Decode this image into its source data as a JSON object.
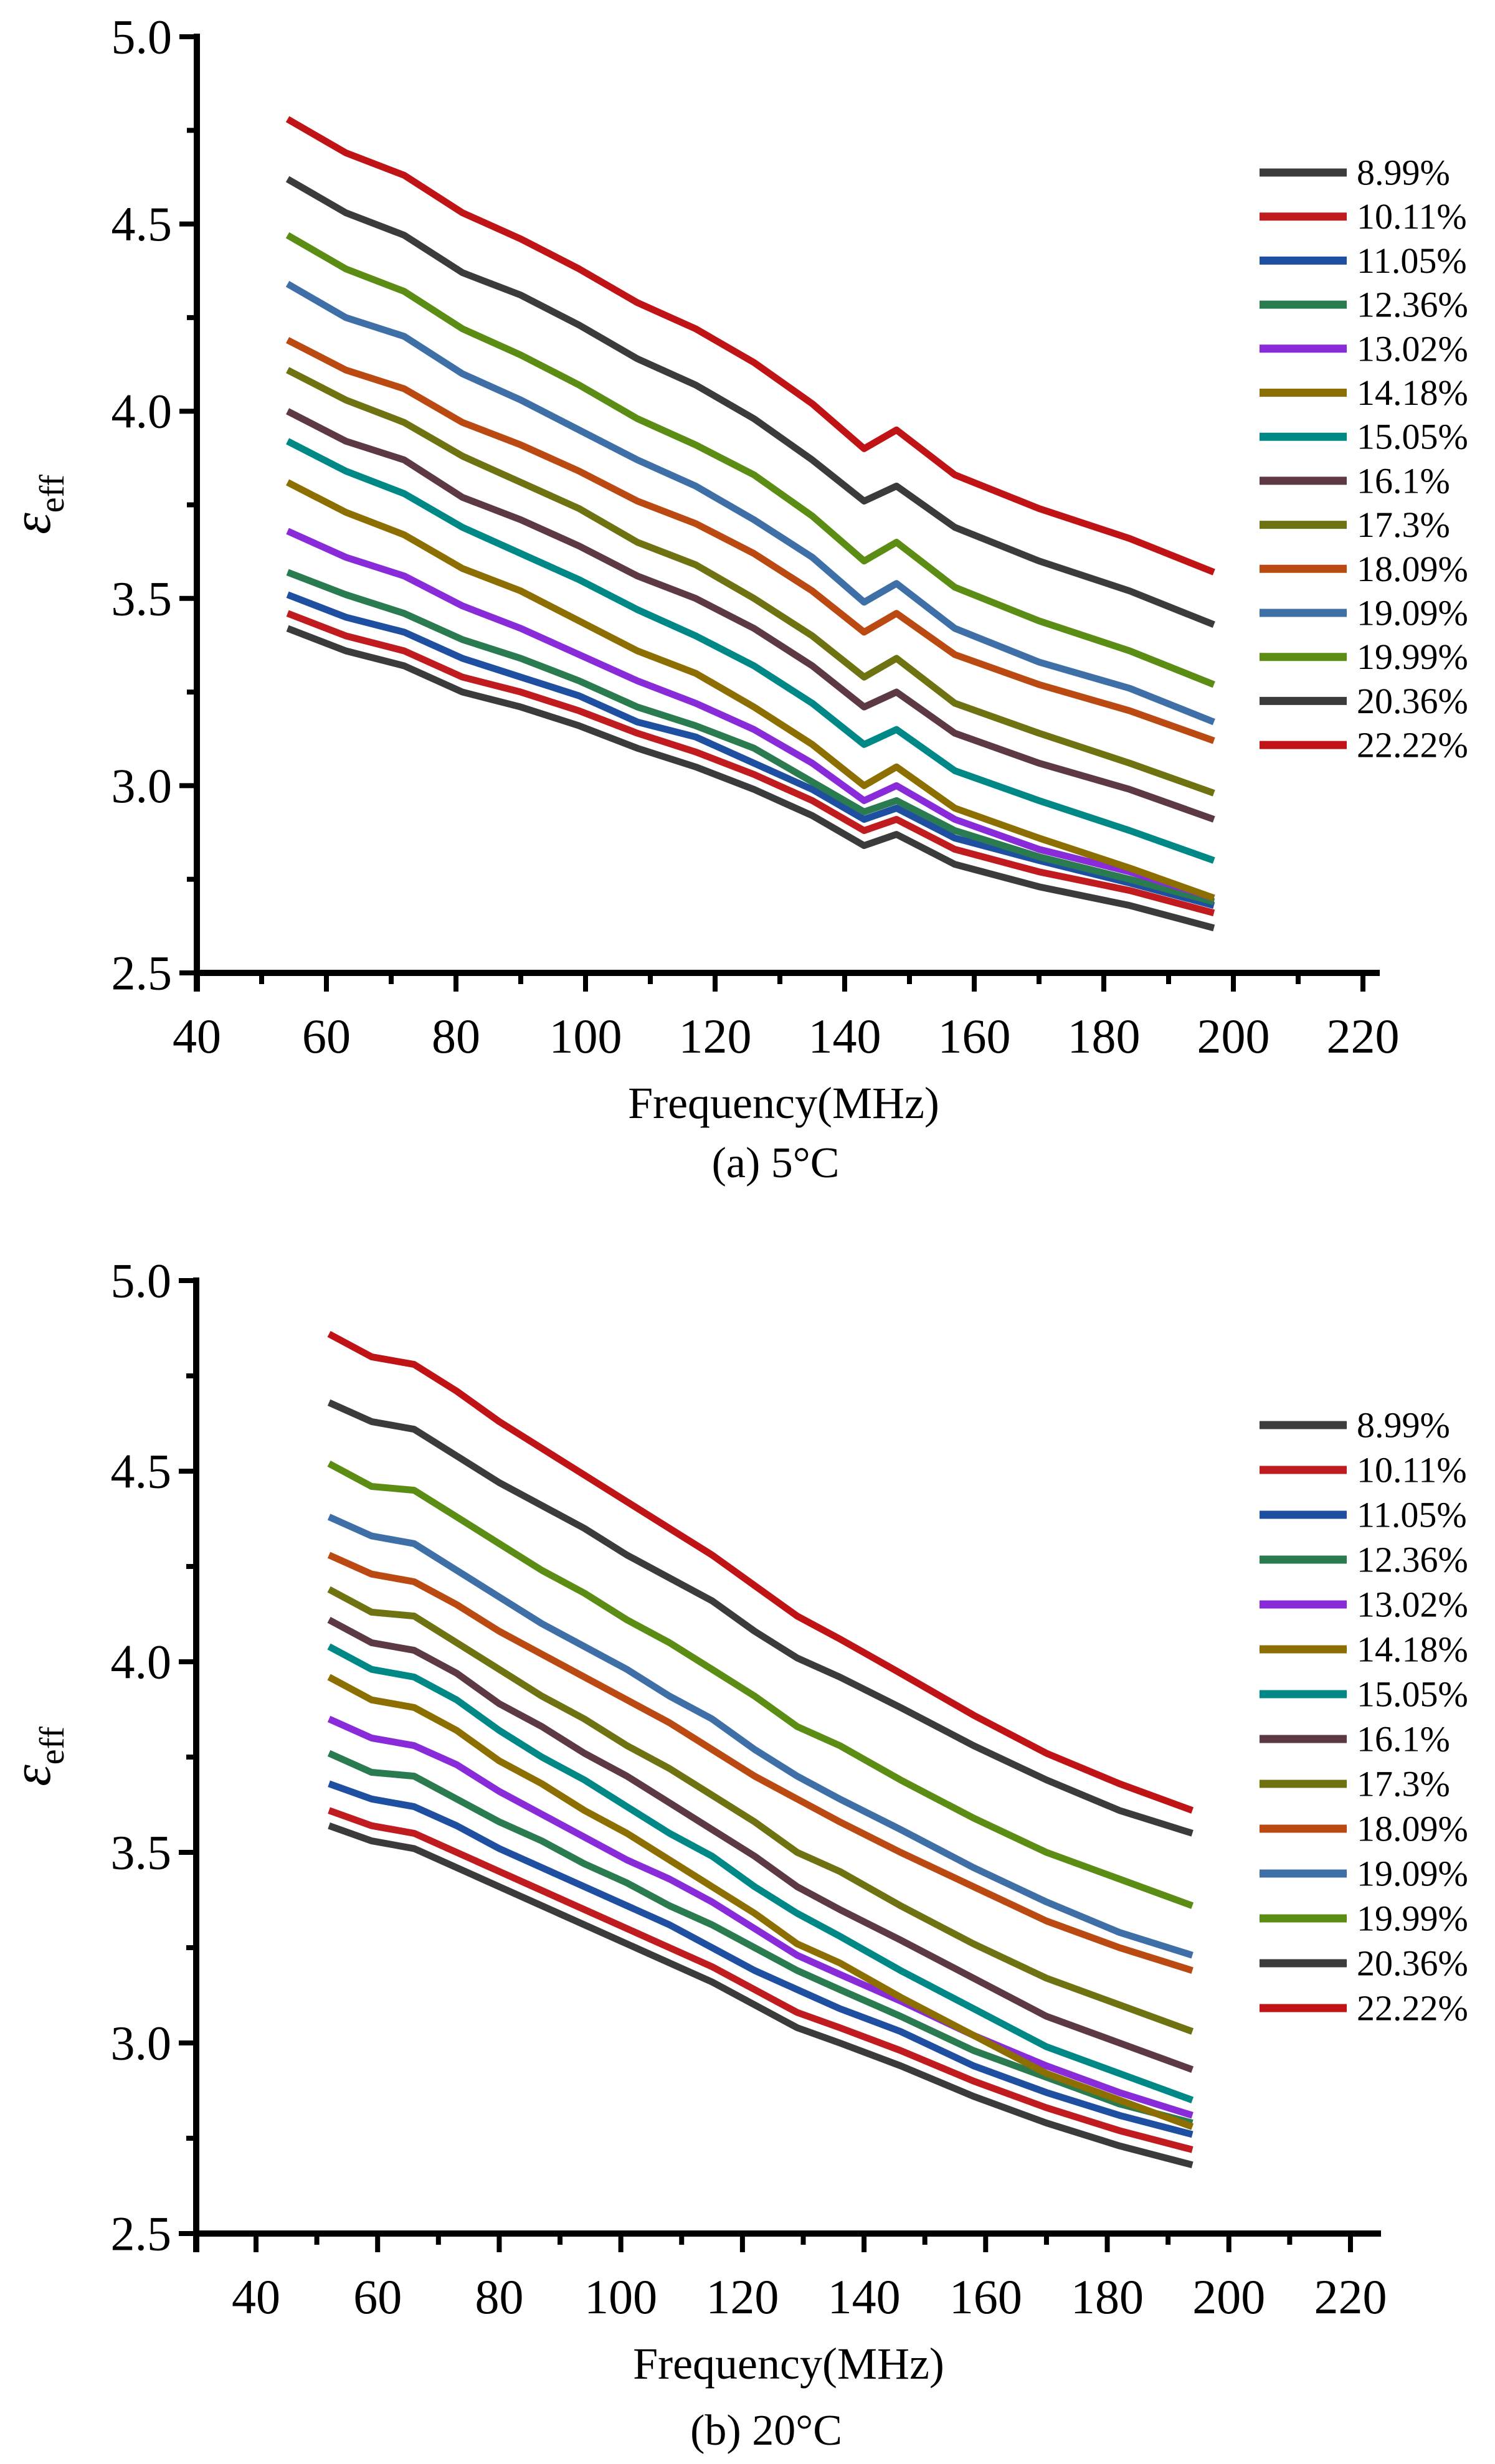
{
  "page": {
    "background": "#ffffff"
  },
  "chart_data": [
    {
      "type": "line",
      "caption": "(a) 5°C",
      "xlabel": "Frequency(MHz)",
      "ylabel_symbol": "ε",
      "ylabel_subscript": "eff",
      "xlim": [
        40,
        222
      ],
      "ylim": [
        2.5,
        5.0
      ],
      "grid": "off",
      "legend_position": "right",
      "x_tick_labels": [
        "40",
        "60",
        "80",
        "100",
        "120",
        "140",
        "160",
        "180",
        "200",
        "220"
      ],
      "x_tick_values": [
        40,
        60,
        80,
        100,
        120,
        140,
        160,
        180,
        200,
        220
      ],
      "x_minor_ticks": [
        50,
        70,
        90,
        110,
        130,
        150,
        170,
        190,
        210
      ],
      "y_tick_labels": [
        "5.0",
        "4.5",
        "4.0",
        "3.5",
        "3.0",
        "2.5"
      ],
      "y_tick_values": [
        5.0,
        4.5,
        4.0,
        3.5,
        3.0,
        2.5
      ],
      "y_minor_ticks": [
        4.75,
        4.25,
        3.75,
        3.25,
        2.75
      ],
      "x": [
        54,
        63,
        72,
        81,
        90,
        99,
        108,
        117,
        126,
        135,
        143,
        148,
        157,
        170,
        184,
        197
      ],
      "series": [
        {
          "label": "8.99%",
          "color": "#3b3b3b",
          "y": [
            3.42,
            3.36,
            3.32,
            3.25,
            3.21,
            3.16,
            3.1,
            3.05,
            2.99,
            2.92,
            2.84,
            2.87,
            2.79,
            2.73,
            2.68,
            2.62
          ]
        },
        {
          "label": "10.11%",
          "color": "#c01b1e",
          "y": [
            3.46,
            3.4,
            3.36,
            3.29,
            3.25,
            3.2,
            3.14,
            3.09,
            3.03,
            2.96,
            2.88,
            2.91,
            2.83,
            2.77,
            2.72,
            2.66
          ]
        },
        {
          "label": "11.05%",
          "color": "#1e4fa0",
          "y": [
            3.51,
            3.45,
            3.41,
            3.34,
            3.29,
            3.24,
            3.17,
            3.13,
            3.06,
            2.99,
            2.91,
            2.94,
            2.86,
            2.8,
            2.74,
            2.68
          ]
        },
        {
          "label": "12.36%",
          "color": "#2a7b50",
          "y": [
            3.57,
            3.51,
            3.46,
            3.39,
            3.34,
            3.28,
            3.21,
            3.16,
            3.1,
            3.01,
            2.93,
            2.96,
            2.88,
            2.81,
            2.75,
            2.69
          ]
        },
        {
          "label": "13.02%",
          "color": "#8a2bd9",
          "y": [
            3.68,
            3.61,
            3.56,
            3.48,
            3.42,
            3.35,
            3.28,
            3.22,
            3.15,
            3.06,
            2.96,
            3.0,
            2.91,
            2.83,
            2.77,
            2.7
          ]
        },
        {
          "label": "14.18%",
          "color": "#8d6e00",
          "y": [
            3.81,
            3.73,
            3.67,
            3.58,
            3.52,
            3.44,
            3.36,
            3.3,
            3.21,
            3.11,
            3.0,
            3.05,
            2.94,
            2.86,
            2.78,
            2.7
          ]
        },
        {
          "label": "15.05%",
          "color": "#008887",
          "y": [
            3.92,
            3.84,
            3.78,
            3.69,
            3.62,
            3.55,
            3.47,
            3.4,
            3.32,
            3.22,
            3.11,
            3.15,
            3.04,
            2.96,
            2.88,
            2.8
          ]
        },
        {
          "label": "16.1%",
          "color": "#5d3a43",
          "y": [
            4.0,
            3.92,
            3.87,
            3.77,
            3.71,
            3.64,
            3.56,
            3.5,
            3.42,
            3.32,
            3.21,
            3.25,
            3.14,
            3.06,
            2.99,
            2.91
          ]
        },
        {
          "label": "17.3%",
          "color": "#6e7211",
          "y": [
            4.11,
            4.03,
            3.97,
            3.88,
            3.81,
            3.74,
            3.65,
            3.59,
            3.5,
            3.4,
            3.29,
            3.34,
            3.22,
            3.14,
            3.06,
            2.98
          ]
        },
        {
          "label": "18.09%",
          "color": "#bb4a12",
          "y": [
            4.19,
            4.11,
            4.06,
            3.97,
            3.91,
            3.84,
            3.76,
            3.7,
            3.62,
            3.52,
            3.41,
            3.46,
            3.35,
            3.27,
            3.2,
            3.12
          ]
        },
        {
          "label": "19.09%",
          "color": "#3e70a7",
          "y": [
            4.34,
            4.25,
            4.2,
            4.1,
            4.03,
            3.95,
            3.87,
            3.8,
            3.71,
            3.61,
            3.49,
            3.54,
            3.42,
            3.33,
            3.26,
            3.17
          ]
        },
        {
          "label": "19.99%",
          "color": "#5b8c14",
          "y": [
            4.47,
            4.38,
            4.32,
            4.22,
            4.15,
            4.07,
            3.98,
            3.91,
            3.83,
            3.72,
            3.6,
            3.65,
            3.53,
            3.44,
            3.36,
            3.27
          ]
        },
        {
          "label": "20.36%",
          "color": "#3b3b3b",
          "y": [
            4.62,
            4.53,
            4.47,
            4.37,
            4.31,
            4.23,
            4.14,
            4.07,
            3.98,
            3.87,
            3.76,
            3.8,
            3.69,
            3.6,
            3.52,
            3.43
          ]
        },
        {
          "label": "22.22%",
          "color": "#c01316",
          "y": [
            4.78,
            4.69,
            4.63,
            4.53,
            4.46,
            4.38,
            4.29,
            4.22,
            4.13,
            4.02,
            3.9,
            3.95,
            3.83,
            3.74,
            3.66,
            3.57
          ]
        }
      ]
    },
    {
      "type": "line",
      "caption": "(b) 20°C",
      "xlabel": "Frequency(MHz)",
      "ylabel_symbol": "ε",
      "ylabel_subscript": "eff",
      "xlim": [
        30,
        225
      ],
      "ylim": [
        2.5,
        5.0
      ],
      "grid": "off",
      "legend_position": "right",
      "x_tick_labels": [
        "40",
        "60",
        "80",
        "100",
        "120",
        "140",
        "160",
        "180",
        "200",
        "220"
      ],
      "x_tick_values": [
        40,
        60,
        80,
        100,
        120,
        140,
        160,
        180,
        200,
        220
      ],
      "x_minor_ticks": [
        50,
        70,
        90,
        110,
        130,
        150,
        170,
        190,
        210
      ],
      "y_tick_labels": [
        "5.0",
        "4.5",
        "4.0",
        "3.5",
        "3.0",
        "2.5"
      ],
      "y_tick_values": [
        5.0,
        4.5,
        4.0,
        3.5,
        3.0,
        2.5
      ],
      "y_minor_ticks": [
        4.75,
        4.25,
        3.75,
        3.25,
        2.75
      ],
      "x": [
        52,
        59,
        66,
        73,
        80,
        87,
        94,
        101,
        108,
        115,
        122,
        129,
        136,
        146,
        158,
        170,
        182,
        194
      ],
      "series": [
        {
          "label": "8.99%",
          "color": "#3b3b3b",
          "y": [
            3.57,
            3.53,
            3.51,
            3.46,
            3.41,
            3.36,
            3.31,
            3.26,
            3.21,
            3.16,
            3.1,
            3.04,
            3.0,
            2.94,
            2.86,
            2.79,
            2.73,
            2.68
          ]
        },
        {
          "label": "10.11%",
          "color": "#c01b1e",
          "y": [
            3.61,
            3.57,
            3.55,
            3.5,
            3.45,
            3.4,
            3.35,
            3.3,
            3.25,
            3.2,
            3.14,
            3.08,
            3.04,
            2.98,
            2.9,
            2.83,
            2.77,
            2.72
          ]
        },
        {
          "label": "11.05%",
          "color": "#1e4fa0",
          "y": [
            3.68,
            3.64,
            3.62,
            3.57,
            3.51,
            3.46,
            3.41,
            3.36,
            3.31,
            3.25,
            3.19,
            3.14,
            3.09,
            3.03,
            2.94,
            2.87,
            2.81,
            2.76
          ]
        },
        {
          "label": "12.36%",
          "color": "#2a7b50",
          "y": [
            3.76,
            3.71,
            3.7,
            3.64,
            3.58,
            3.53,
            3.47,
            3.42,
            3.36,
            3.31,
            3.25,
            3.19,
            3.14,
            3.07,
            2.98,
            2.91,
            2.84,
            2.79
          ]
        },
        {
          "label": "13.02%",
          "color": "#8a2bd9",
          "y": [
            3.85,
            3.8,
            3.78,
            3.73,
            3.66,
            3.6,
            3.54,
            3.48,
            3.43,
            3.37,
            3.3,
            3.23,
            3.18,
            3.11,
            3.02,
            2.94,
            2.87,
            2.81
          ]
        },
        {
          "label": "14.18%",
          "color": "#8d6e00",
          "y": [
            3.96,
            3.9,
            3.88,
            3.82,
            3.74,
            3.68,
            3.61,
            3.55,
            3.48,
            3.41,
            3.34,
            3.26,
            3.21,
            3.12,
            3.02,
            2.92,
            2.85,
            2.78
          ]
        },
        {
          "label": "15.05%",
          "color": "#008887",
          "y": [
            4.04,
            3.98,
            3.96,
            3.9,
            3.82,
            3.75,
            3.69,
            3.62,
            3.55,
            3.49,
            3.41,
            3.34,
            3.28,
            3.19,
            3.09,
            2.99,
            2.92,
            2.85
          ]
        },
        {
          "label": "16.1%",
          "color": "#5d3a43",
          "y": [
            4.11,
            4.05,
            4.03,
            3.97,
            3.89,
            3.83,
            3.76,
            3.7,
            3.63,
            3.56,
            3.49,
            3.41,
            3.35,
            3.27,
            3.17,
            3.07,
            3.0,
            2.93
          ]
        },
        {
          "label": "17.3%",
          "color": "#6e7211",
          "y": [
            4.19,
            4.13,
            4.12,
            4.05,
            3.98,
            3.91,
            3.85,
            3.78,
            3.72,
            3.65,
            3.58,
            3.5,
            3.45,
            3.36,
            3.26,
            3.17,
            3.1,
            3.03
          ]
        },
        {
          "label": "18.09%",
          "color": "#bb4a12",
          "y": [
            4.28,
            4.23,
            4.21,
            4.15,
            4.08,
            4.02,
            3.96,
            3.9,
            3.84,
            3.77,
            3.7,
            3.64,
            3.58,
            3.5,
            3.41,
            3.32,
            3.25,
            3.19
          ]
        },
        {
          "label": "19.09%",
          "color": "#3e70a7",
          "y": [
            4.38,
            4.33,
            4.31,
            4.24,
            4.17,
            4.1,
            4.04,
            3.98,
            3.91,
            3.85,
            3.77,
            3.7,
            3.64,
            3.56,
            3.46,
            3.37,
            3.29,
            3.23
          ]
        },
        {
          "label": "19.99%",
          "color": "#5b8c14",
          "y": [
            4.52,
            4.46,
            4.45,
            4.38,
            4.31,
            4.24,
            4.18,
            4.11,
            4.05,
            3.98,
            3.91,
            3.83,
            3.78,
            3.69,
            3.59,
            3.5,
            3.43,
            3.36
          ]
        },
        {
          "label": "20.36%",
          "color": "#3b3b3b",
          "y": [
            4.68,
            4.63,
            4.61,
            4.54,
            4.47,
            4.41,
            4.35,
            4.28,
            4.22,
            4.16,
            4.08,
            4.01,
            3.96,
            3.88,
            3.78,
            3.69,
            3.61,
            3.55
          ]
        },
        {
          "label": "22.22%",
          "color": "#c01316",
          "y": [
            4.86,
            4.8,
            4.78,
            4.71,
            4.63,
            4.56,
            4.49,
            4.42,
            4.35,
            4.28,
            4.2,
            4.12,
            4.06,
            3.97,
            3.86,
            3.76,
            3.68,
            3.61
          ]
        }
      ]
    }
  ]
}
